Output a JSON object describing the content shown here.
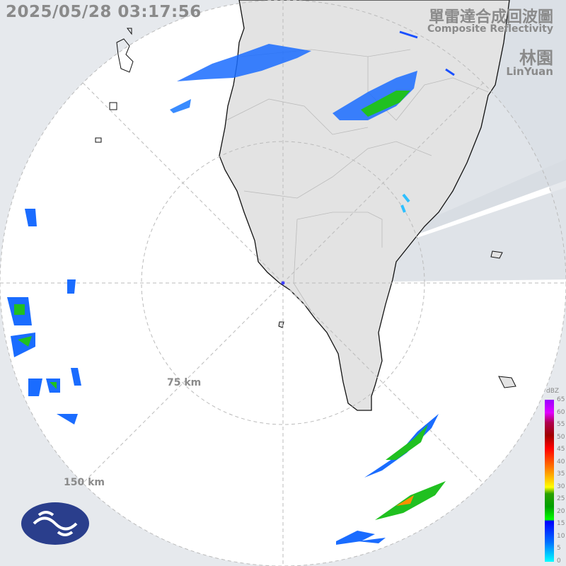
{
  "timestamp": "2025/05/28 03:17:56",
  "title": {
    "zh": "單雷達合成回波圖",
    "en": "Composite Reflectivity"
  },
  "station": {
    "zh": "林園",
    "en": "LinYuan"
  },
  "range_rings": [
    {
      "label": "75 km"
    },
    {
      "label": "150 km"
    }
  ],
  "legend": {
    "unit": "dBZ",
    "ticks": [
      "65",
      "60",
      "55",
      "50",
      "45",
      "40",
      "35",
      "30",
      "25",
      "20",
      "15",
      "10",
      "5",
      "0"
    ]
  },
  "colors": {
    "land": "#e3e3e3",
    "sea_in_range": "#ffffff",
    "out_of_range": "#e6e9ed",
    "echo_weak": "#0050ff",
    "echo_moderate": "#00c000",
    "echo_strong": "#ff8000"
  },
  "logo": "cwa-logo"
}
